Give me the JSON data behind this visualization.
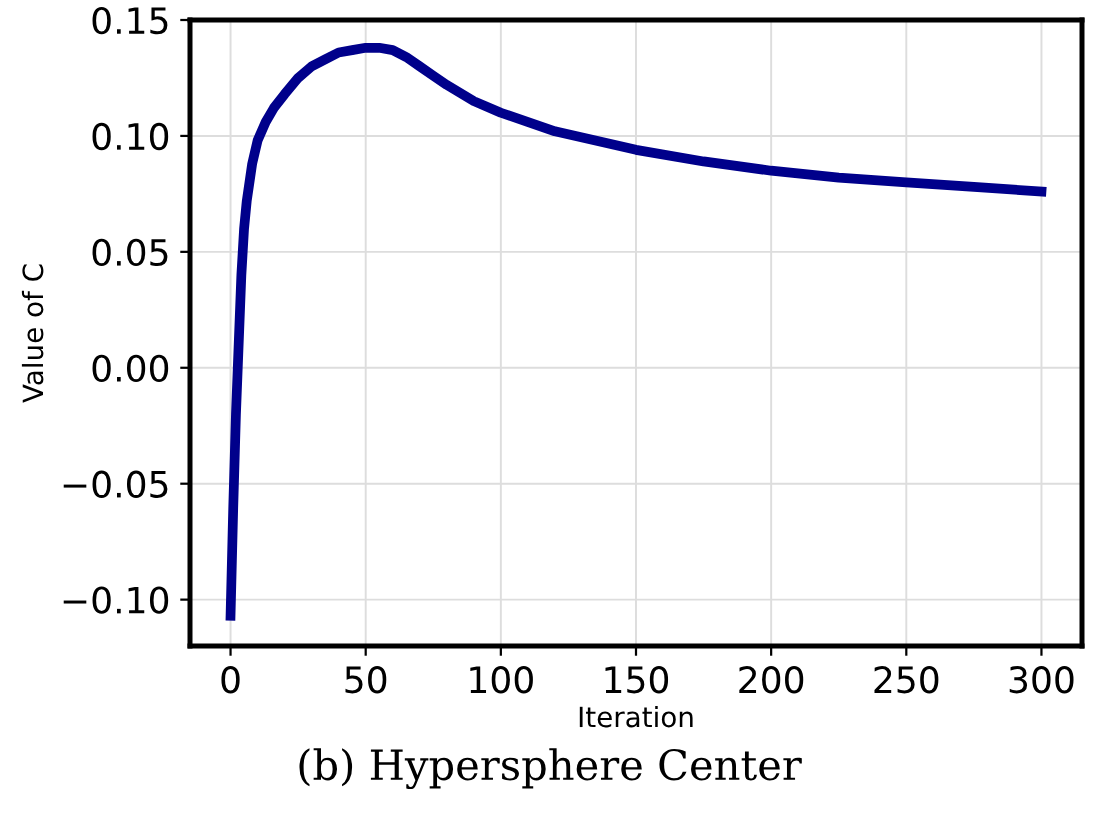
{
  "chart_data": {
    "type": "line",
    "xlabel": "Iteration",
    "ylabel": "Value of C",
    "annotations": [
      "(b) Hypersphere Center"
    ],
    "x": [
      0,
      1,
      2,
      3,
      4,
      5,
      6,
      8,
      10,
      13,
      16,
      20,
      25,
      30,
      35,
      40,
      45,
      50,
      55,
      60,
      65,
      70,
      75,
      80,
      90,
      100,
      120,
      150,
      175,
      200,
      225,
      250,
      275,
      300
    ],
    "series": [
      {
        "color": "#00008b",
        "values": [
          -0.107,
          -0.06,
          -0.02,
          0.01,
          0.04,
          0.06,
          0.072,
          0.088,
          0.098,
          0.106,
          0.112,
          0.118,
          0.125,
          0.13,
          0.133,
          0.136,
          0.137,
          0.138,
          0.138,
          0.137,
          0.134,
          0.13,
          0.126,
          0.122,
          0.115,
          0.11,
          0.102,
          0.094,
          0.089,
          0.085,
          0.082,
          0.08,
          0.078,
          0.076
        ]
      }
    ],
    "xlim": [
      -15,
      315
    ],
    "ylim": [
      -0.12,
      0.15
    ],
    "xticks": [
      0,
      50,
      100,
      150,
      200,
      250,
      300
    ],
    "yticks": [
      {
        "value": -0.1,
        "label": "−0.10"
      },
      {
        "value": -0.05,
        "label": "−0.05"
      },
      {
        "value": 0,
        "label": "0.00"
      },
      {
        "value": 0.05,
        "label": "0.05"
      },
      {
        "value": 0.1,
        "label": "0.10"
      },
      {
        "value": 0.15,
        "label": "0.15"
      }
    ],
    "grid": true,
    "line_style": "solid",
    "marker": "none"
  }
}
